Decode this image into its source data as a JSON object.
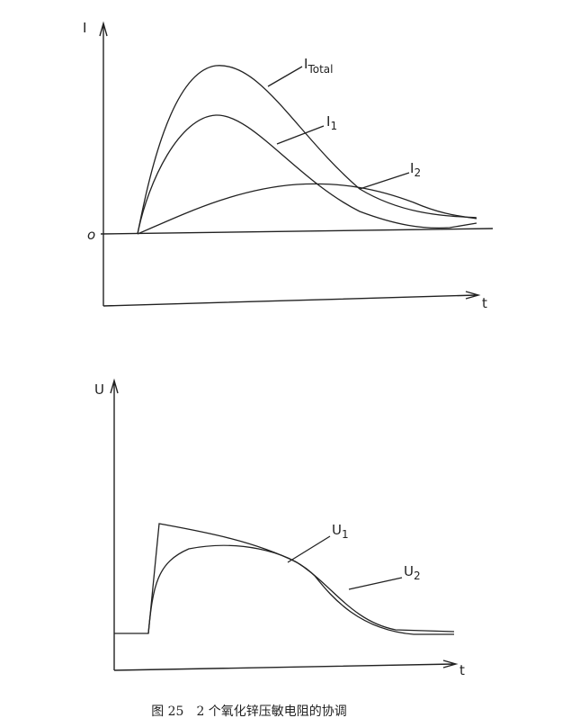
{
  "top_diagram": {
    "y_axis_label": "I",
    "origin_label": "o",
    "x_axis_label": "t",
    "curves": [
      {
        "label": "I",
        "subscript": "Total"
      },
      {
        "label": "I",
        "subscript": "1"
      },
      {
        "label": "I",
        "subscript": "2"
      }
    ]
  },
  "bottom_diagram": {
    "y_axis_label": "U",
    "x_axis_label": "t",
    "curves": [
      {
        "label": "U",
        "subscript": "1"
      },
      {
        "label": "U",
        "subscript": "2"
      }
    ]
  },
  "caption": "图 25　2 个氧化锌压敏电阻的协调"
}
